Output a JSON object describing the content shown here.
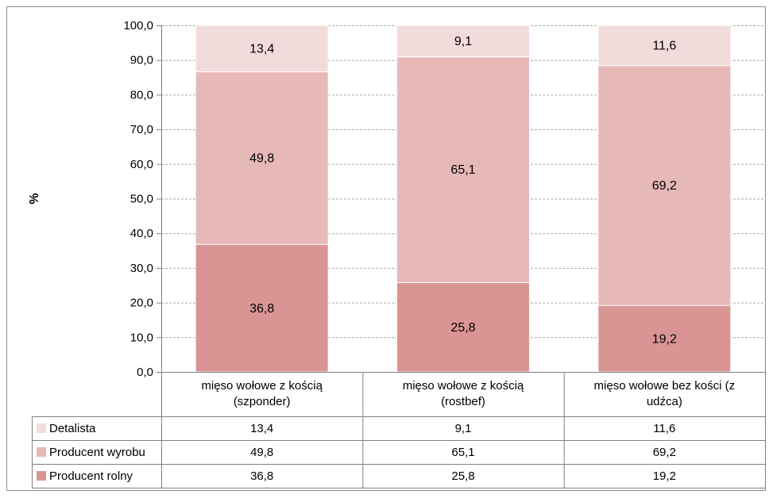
{
  "chart_data": {
    "type": "bar",
    "stacked": true,
    "percent_stacked": true,
    "title": "",
    "xlabel": "",
    "ylabel": "%",
    "ylim": [
      0,
      100
    ],
    "yticks": [
      "0,0",
      "10,0",
      "20,0",
      "30,0",
      "40,0",
      "50,0",
      "60,0",
      "70,0",
      "80,0",
      "90,0",
      "100,0"
    ],
    "grid": true,
    "legend_placement": "data-table-left",
    "categories": [
      [
        "mięso wołowe z kością",
        "(szponder)"
      ],
      [
        "mięso wołowe z kością",
        "(rostbef)"
      ],
      [
        "mięso wołowe bez kości (z",
        "udźca)"
      ]
    ],
    "series": [
      {
        "name": "Producent rolny",
        "values": [
          36.8,
          25.8,
          19.2
        ],
        "labels": [
          "36,8",
          "25,8",
          "19,2"
        ],
        "color": "#d99594"
      },
      {
        "name": "Producent wyrobu",
        "values": [
          49.8,
          65.1,
          69.2
        ],
        "labels": [
          "49,8",
          "65,1",
          "69,2"
        ],
        "color": "#e6b8b7"
      },
      {
        "name": "Detalista",
        "values": [
          13.4,
          9.1,
          11.6
        ],
        "labels": [
          "13,4",
          "9,1",
          "11,6"
        ],
        "color": "#f2dcdb"
      }
    ],
    "table_rows_order": [
      "Detalista",
      "Producent wyrobu",
      "Producent rolny"
    ]
  }
}
